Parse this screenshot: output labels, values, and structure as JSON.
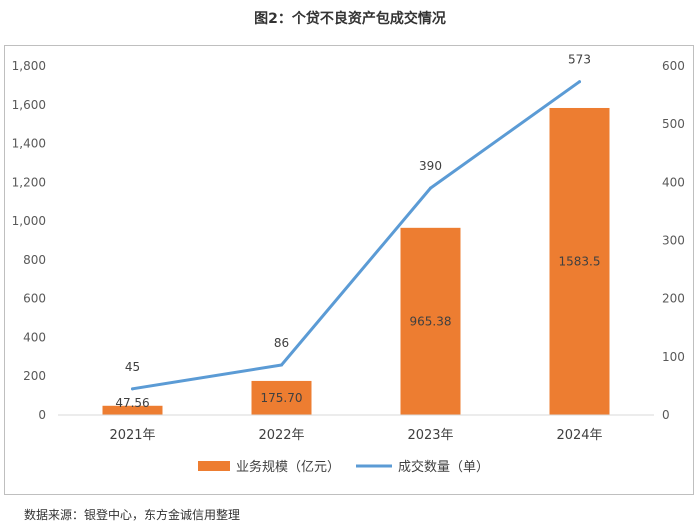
{
  "title": "图2：个贷不良资产包成交情况",
  "source": "数据来源：银登中心，东方金诚信用整理",
  "chart_data": {
    "type": "bar+line",
    "categories": [
      "2021年",
      "2022年",
      "2023年",
      "2024年"
    ],
    "series": [
      {
        "name": "业务规模（亿元）",
        "type": "bar",
        "axis": "left",
        "color": "#ED7D31",
        "values": [
          47.56,
          175.7,
          965.38,
          1583.5
        ],
        "labels": [
          "47.56",
          "175.70",
          "965.38",
          "1583.5"
        ]
      },
      {
        "name": "成交数量（单）",
        "type": "line",
        "axis": "right",
        "color": "#5B9BD5",
        "values": [
          45,
          86,
          390,
          573
        ],
        "labels": [
          "45",
          "86",
          "390",
          "573"
        ]
      }
    ],
    "y_left": {
      "min": 0,
      "max": 1800,
      "ticks": [
        0,
        200,
        400,
        600,
        800,
        1000,
        1200,
        1400,
        1600,
        1800
      ],
      "tick_labels": [
        "0",
        "200",
        "400",
        "600",
        "800",
        "1,000",
        "1,200",
        "1,400",
        "1,600",
        "1,800"
      ]
    },
    "y_right": {
      "min": 0,
      "max": 600,
      "ticks": [
        0,
        100,
        200,
        300,
        400,
        500,
        600
      ],
      "tick_labels": [
        "0",
        "100",
        "200",
        "300",
        "400",
        "500",
        "600"
      ]
    },
    "grid": false,
    "legend": "bottom"
  }
}
